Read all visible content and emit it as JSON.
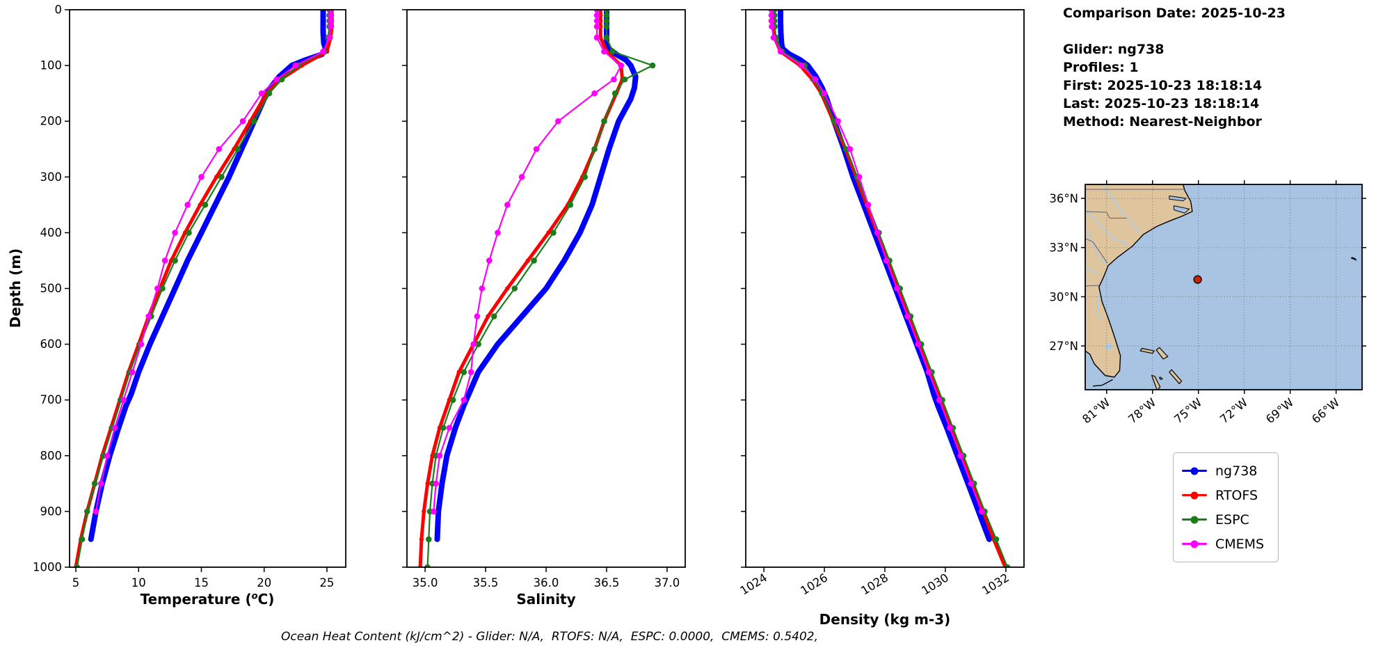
{
  "info": {
    "lines": [
      "Comparison Date: 2025-10-23",
      "",
      "Glider: ng738",
      "Profiles: 1",
      "First: 2025-10-23 18:18:14",
      "Last: 2025-10-23 18:18:14",
      "Method: Nearest-Neighbor"
    ]
  },
  "annotation": {
    "text": "Ocean Heat Content (kJ/cm^2) - Glider: N/A,  RTOFS: N/A,  ESPC: 0.0000,  CMEMS: 0.5402,"
  },
  "legend": {
    "items": [
      {
        "label": "ng738",
        "color": "#0000ff"
      },
      {
        "label": "RTOFS",
        "color": "#ff0000"
      },
      {
        "label": "ESPC",
        "color": "#1a7d1a"
      },
      {
        "label": "CMEMS",
        "color": "#ff00ff"
      }
    ]
  },
  "axes": {
    "ylabel": "Depth (m)",
    "depth_ticks": [
      0,
      100,
      200,
      300,
      400,
      500,
      600,
      700,
      800,
      900,
      1000
    ]
  },
  "map": {
    "ocean_color": "#a9c3e2",
    "land_color": "#dfc59e",
    "river_color": "#a7cdf0",
    "marker": {
      "lon_deg_w": 75.05,
      "lat_deg_n": 31.05,
      "color": "#cc2200"
    },
    "lat_ticks": [
      {
        "v": 36,
        "label": "36°N"
      },
      {
        "v": 33,
        "label": "33°N"
      },
      {
        "v": 30,
        "label": "30°N"
      },
      {
        "v": 27,
        "label": "27°N"
      }
    ],
    "lon_ticks": [
      {
        "v": 81,
        "label": "81°W"
      },
      {
        "v": 78,
        "label": "78°W"
      },
      {
        "v": 75,
        "label": "75°W"
      },
      {
        "v": 72,
        "label": "72°W"
      },
      {
        "v": 69,
        "label": "69°W"
      },
      {
        "v": 66,
        "label": "66°W"
      }
    ]
  },
  "chart_data": [
    {
      "id": "temperature",
      "type": "line",
      "xlabel_pre": "Temperature (",
      "xlabel_sup": "o",
      "xlabel_post": "C)",
      "ylabel": "Depth (m)",
      "xlim": [
        4.5,
        26.5
      ],
      "ylim": [
        1000,
        0
      ],
      "xticks": [
        5,
        10,
        15,
        20,
        25
      ],
      "xtick_labels": [
        "5",
        "10",
        "15",
        "20",
        "25"
      ],
      "rotate_xticklabels": false,
      "series": [
        {
          "name": "ng738",
          "color": "#0000ff",
          "depth": [
            0,
            20,
            40,
            60,
            70,
            80,
            90,
            100,
            120,
            140,
            160,
            180,
            200,
            250,
            300,
            350,
            400,
            450,
            500,
            550,
            600,
            650,
            690,
            710,
            750,
            800,
            850,
            900,
            950
          ],
          "values": [
            24.7,
            24.7,
            24.7,
            24.75,
            24.9,
            24.6,
            23.3,
            22.2,
            21.2,
            20.5,
            20.0,
            19.6,
            19.2,
            18.2,
            17.2,
            16.1,
            15.0,
            13.9,
            12.9,
            11.9,
            10.9,
            10.0,
            9.4,
            9.0,
            8.4,
            7.7,
            7.1,
            6.6,
            6.2
          ]
        },
        {
          "name": "RTOFS",
          "color": "#ff0000",
          "depth": [
            0,
            10,
            20,
            30,
            50,
            75,
            100,
            125,
            150,
            200,
            250,
            300,
            350,
            400,
            450,
            500,
            550,
            600,
            650,
            700,
            750,
            800,
            850,
            900,
            950,
            1000
          ],
          "values": [
            25.4,
            25.4,
            25.4,
            25.4,
            25.3,
            25.0,
            23.0,
            21.3,
            20.2,
            18.9,
            17.6,
            16.2,
            14.9,
            13.7,
            12.6,
            11.7,
            10.8,
            10.0,
            9.2,
            8.5,
            7.8,
            7.1,
            6.5,
            5.9,
            5.4,
            5.0
          ]
        },
        {
          "name": "ESPC",
          "color": "#1a7d1a",
          "depth": [
            0,
            10,
            20,
            30,
            50,
            75,
            100,
            125,
            150,
            200,
            250,
            300,
            350,
            400,
            450,
            500,
            550,
            600,
            650,
            700,
            750,
            800,
            850,
            900,
            950,
            1000
          ],
          "values": [
            25.2,
            25.2,
            25.2,
            25.2,
            25.1,
            24.8,
            22.7,
            21.4,
            20.4,
            19.2,
            17.9,
            16.6,
            15.3,
            14.0,
            12.9,
            11.9,
            11.0,
            10.1,
            9.3,
            8.6,
            7.9,
            7.2,
            6.5,
            5.9,
            5.5,
            5.1
          ]
        },
        {
          "name": "CMEMS",
          "color": "#ff00ff",
          "depth": [
            0,
            10,
            20,
            30,
            50,
            75,
            100,
            125,
            150,
            200,
            250,
            300,
            350,
            400,
            450,
            500,
            550,
            600,
            650,
            700,
            750,
            800,
            850,
            900
          ],
          "values": [
            25.3,
            25.3,
            25.3,
            25.3,
            25.2,
            24.7,
            22.5,
            21.0,
            19.8,
            18.3,
            16.4,
            15.0,
            13.9,
            12.9,
            12.1,
            11.5,
            10.8,
            10.2,
            9.5,
            8.8,
            8.1,
            7.5,
            7.0,
            6.6
          ]
        }
      ]
    },
    {
      "id": "salinity",
      "type": "line",
      "xlabel": "Salinity",
      "ylabel": "Depth (m)",
      "xlim": [
        34.85,
        37.15
      ],
      "ylim": [
        1000,
        0
      ],
      "xticks": [
        35.0,
        35.5,
        36.0,
        36.5,
        37.0
      ],
      "xtick_labels": [
        "35.0",
        "35.5",
        "36.0",
        "36.5",
        "37.0"
      ],
      "rotate_xticklabels": false,
      "series": [
        {
          "name": "ng738",
          "color": "#0000ff",
          "depth": [
            0,
            20,
            40,
            60,
            70,
            80,
            90,
            100,
            120,
            140,
            160,
            180,
            200,
            250,
            300,
            350,
            400,
            450,
            500,
            550,
            600,
            650,
            690,
            710,
            750,
            800,
            850,
            900,
            950
          ],
          "values": [
            36.5,
            36.5,
            36.5,
            36.5,
            36.52,
            36.58,
            36.66,
            36.7,
            36.74,
            36.73,
            36.7,
            36.65,
            36.6,
            36.52,
            36.45,
            36.38,
            36.28,
            36.15,
            36.0,
            35.8,
            35.6,
            35.44,
            35.36,
            35.32,
            35.25,
            35.18,
            35.14,
            35.11,
            35.1
          ]
        },
        {
          "name": "RTOFS",
          "color": "#ff0000",
          "depth": [
            0,
            10,
            20,
            30,
            50,
            75,
            100,
            125,
            150,
            200,
            250,
            300,
            350,
            400,
            450,
            500,
            550,
            600,
            650,
            700,
            750,
            800,
            850,
            900,
            950,
            1000
          ],
          "values": [
            36.45,
            36.45,
            36.45,
            36.45,
            36.45,
            36.5,
            36.62,
            36.63,
            36.58,
            36.48,
            36.4,
            36.3,
            36.18,
            36.02,
            35.85,
            35.68,
            35.52,
            35.4,
            35.28,
            35.2,
            35.12,
            35.06,
            35.02,
            34.99,
            34.97,
            34.96
          ]
        },
        {
          "name": "ESPC",
          "color": "#1a7d1a",
          "depth": [
            0,
            10,
            20,
            30,
            50,
            75,
            100,
            125,
            150,
            200,
            250,
            300,
            350,
            400,
            450,
            500,
            550,
            600,
            650,
            700,
            750,
            800,
            850,
            900,
            950,
            1000
          ],
          "values": [
            36.5,
            36.5,
            36.5,
            36.5,
            36.5,
            36.55,
            36.88,
            36.65,
            36.57,
            36.48,
            36.4,
            36.32,
            36.2,
            36.06,
            35.9,
            35.74,
            35.57,
            35.44,
            35.32,
            35.23,
            35.15,
            35.09,
            35.06,
            35.04,
            35.03,
            35.02
          ]
        },
        {
          "name": "CMEMS",
          "color": "#ff00ff",
          "depth": [
            0,
            10,
            20,
            30,
            50,
            75,
            100,
            125,
            150,
            200,
            250,
            300,
            350,
            400,
            450,
            500,
            550,
            600,
            650,
            700,
            750,
            800,
            850,
            900
          ],
          "values": [
            36.42,
            36.42,
            36.42,
            36.42,
            36.42,
            36.48,
            36.62,
            36.56,
            36.4,
            36.1,
            35.92,
            35.8,
            35.68,
            35.6,
            35.53,
            35.47,
            35.43,
            35.4,
            35.38,
            35.32,
            35.2,
            35.12,
            35.09,
            35.07
          ]
        }
      ]
    },
    {
      "id": "density",
      "type": "line",
      "xlabel": "Density (kg m-3)",
      "ylabel": "Depth (m)",
      "xlim": [
        1023.4,
        1032.6
      ],
      "ylim": [
        1000,
        0
      ],
      "xticks": [
        1024,
        1026,
        1028,
        1030,
        1032
      ],
      "xtick_labels": [
        "1024",
        "1026",
        "1028",
        "1030",
        "1032"
      ],
      "rotate_xticklabels": true,
      "series": [
        {
          "name": "ng738",
          "color": "#0000ff",
          "depth": [
            0,
            20,
            40,
            60,
            70,
            80,
            90,
            100,
            120,
            140,
            160,
            180,
            200,
            250,
            300,
            350,
            400,
            450,
            500,
            550,
            600,
            650,
            690,
            710,
            750,
            800,
            850,
            900,
            950
          ],
          "values": [
            1024.55,
            1024.55,
            1024.56,
            1024.58,
            1024.62,
            1024.85,
            1025.2,
            1025.45,
            1025.72,
            1025.92,
            1026.08,
            1026.2,
            1026.32,
            1026.65,
            1026.95,
            1027.3,
            1027.65,
            1028.0,
            1028.35,
            1028.7,
            1029.05,
            1029.4,
            1029.62,
            1029.75,
            1030.05,
            1030.4,
            1030.75,
            1031.1,
            1031.45
          ]
        },
        {
          "name": "RTOFS",
          "color": "#ff0000",
          "depth": [
            0,
            10,
            20,
            30,
            50,
            75,
            100,
            125,
            150,
            200,
            250,
            300,
            350,
            400,
            450,
            500,
            550,
            600,
            650,
            700,
            750,
            800,
            850,
            900,
            950,
            1000
          ],
          "values": [
            1024.3,
            1024.3,
            1024.3,
            1024.31,
            1024.35,
            1024.55,
            1025.2,
            1025.6,
            1025.9,
            1026.3,
            1026.7,
            1027.05,
            1027.4,
            1027.75,
            1028.1,
            1028.45,
            1028.8,
            1029.15,
            1029.5,
            1029.85,
            1030.2,
            1030.55,
            1030.9,
            1031.25,
            1031.6,
            1031.98
          ]
        },
        {
          "name": "ESPC",
          "color": "#1a7d1a",
          "depth": [
            0,
            10,
            20,
            30,
            50,
            75,
            100,
            125,
            150,
            200,
            250,
            300,
            350,
            400,
            450,
            500,
            550,
            600,
            650,
            700,
            750,
            800,
            850,
            900,
            950,
            1000
          ],
          "values": [
            1024.35,
            1024.35,
            1024.35,
            1024.36,
            1024.4,
            1024.6,
            1025.35,
            1025.65,
            1025.92,
            1026.32,
            1026.72,
            1027.08,
            1027.44,
            1027.8,
            1028.15,
            1028.5,
            1028.85,
            1029.2,
            1029.55,
            1029.9,
            1030.25,
            1030.6,
            1030.95,
            1031.3,
            1031.68,
            1032.05
          ]
        },
        {
          "name": "CMEMS",
          "color": "#ff00ff",
          "depth": [
            0,
            10,
            20,
            30,
            50,
            75,
            100,
            125,
            150,
            200,
            250,
            300,
            350,
            400,
            450,
            500,
            550,
            600,
            650,
            700,
            750,
            800,
            850,
            900
          ],
          "values": [
            1024.25,
            1024.25,
            1024.25,
            1024.26,
            1024.32,
            1024.55,
            1025.25,
            1025.7,
            1026.0,
            1026.45,
            1026.85,
            1027.15,
            1027.45,
            1027.75,
            1028.05,
            1028.4,
            1028.75,
            1029.1,
            1029.45,
            1029.8,
            1030.15,
            1030.5,
            1030.85,
            1031.2
          ]
        }
      ]
    }
  ]
}
